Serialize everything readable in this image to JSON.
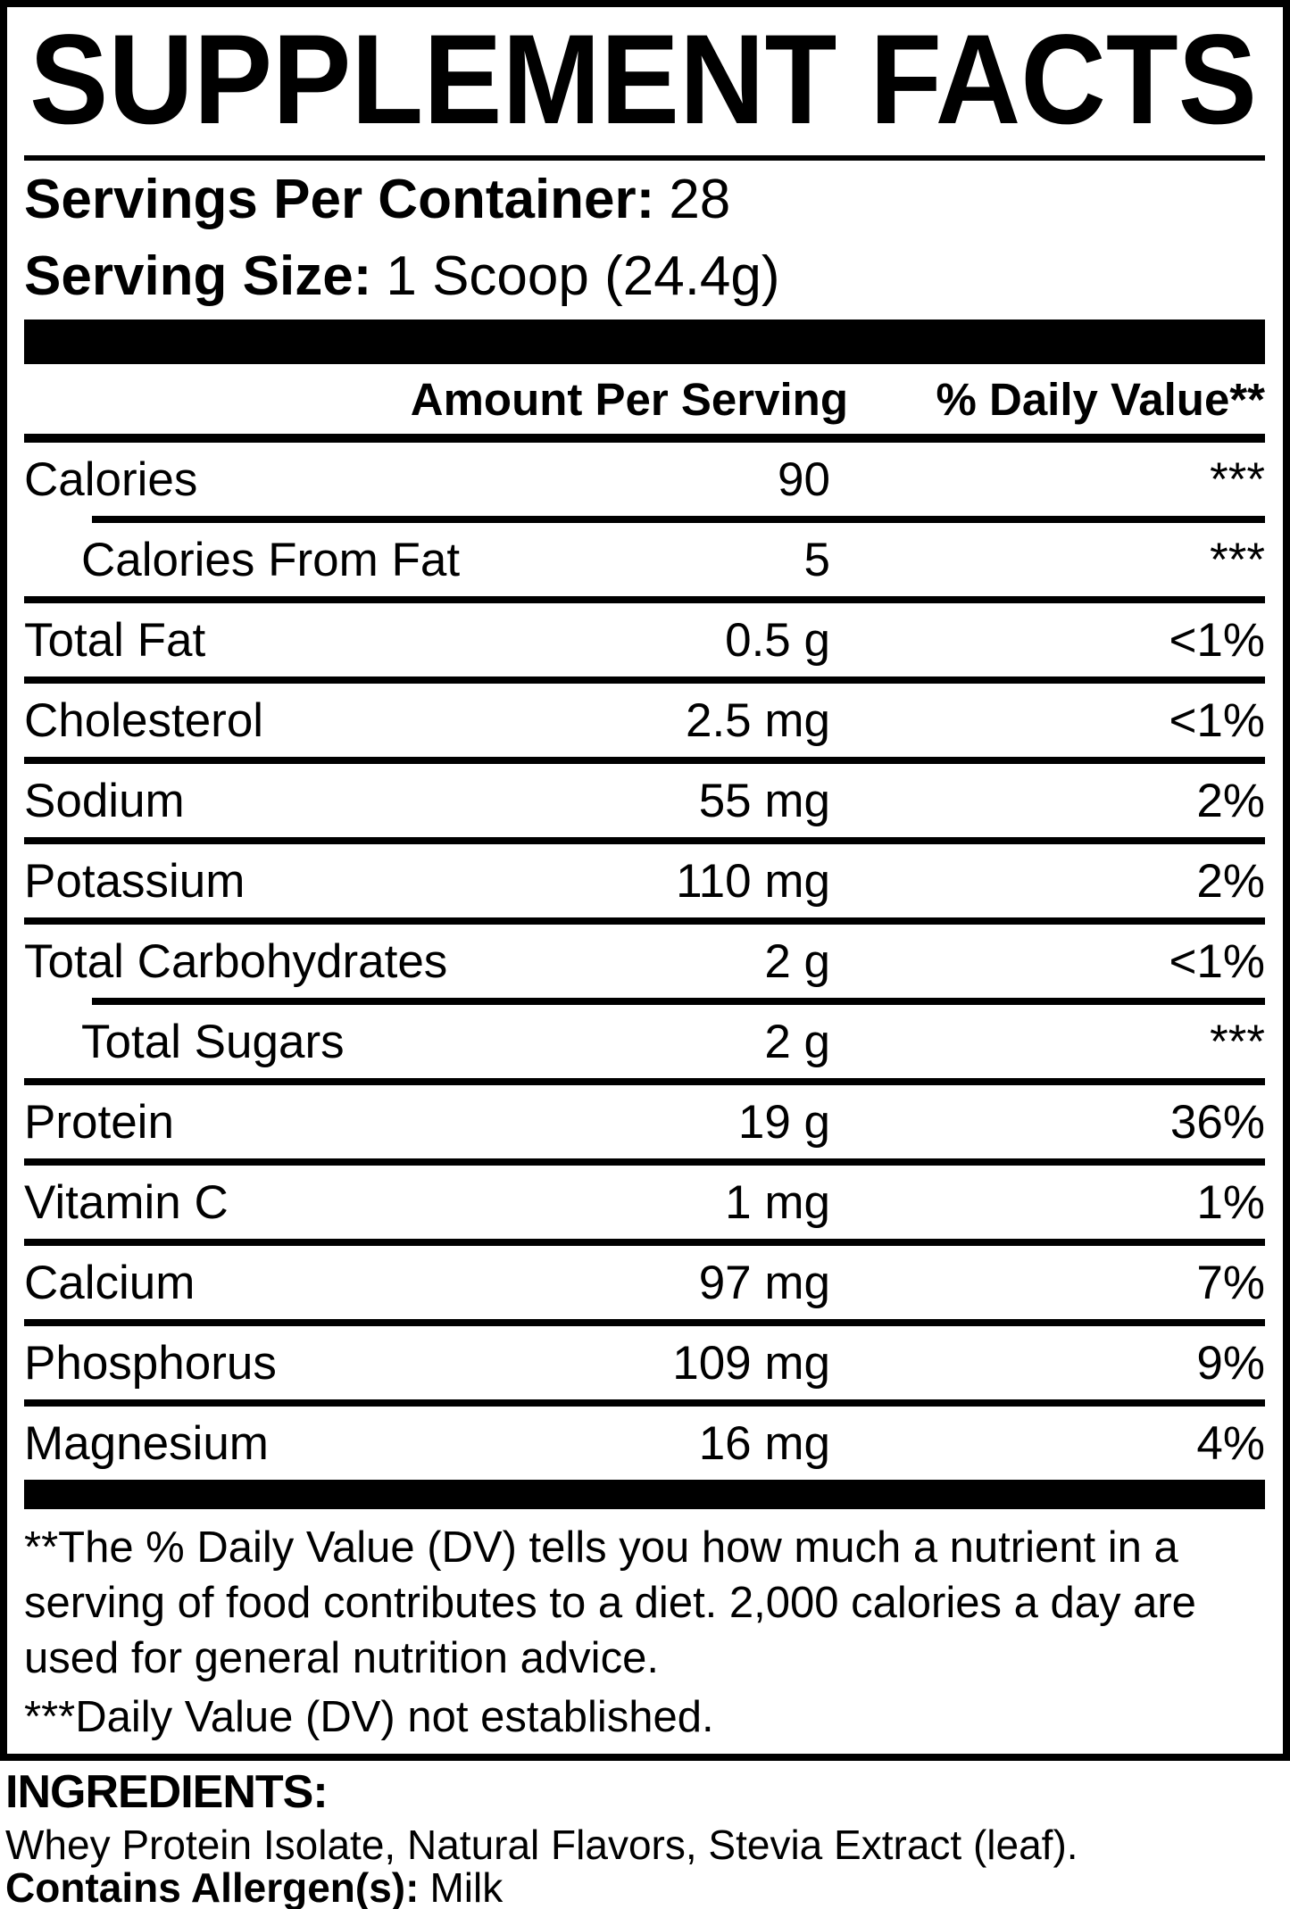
{
  "colors": {
    "ink": "#000000",
    "paper": "#ffffff"
  },
  "title": "SUPPLEMENT FACTS",
  "serving_info": {
    "servings_label": "Servings Per Container:",
    "servings_value": "28",
    "size_label": "Serving Size:",
    "size_value": "1 Scoop (24.4g)"
  },
  "table": {
    "amount_header": "Amount Per Serving",
    "dv_header": "% Daily Value**",
    "rows": [
      {
        "name": "Calories",
        "amount": "90",
        "dv": "***",
        "indent": false,
        "sep": "indent"
      },
      {
        "name": "Calories From Fat",
        "amount": "5",
        "dv": "***",
        "indent": true,
        "sep": "full"
      },
      {
        "name": "Total Fat",
        "amount": "0.5 g",
        "dv": "<1%",
        "indent": false,
        "sep": "full"
      },
      {
        "name": "Cholesterol",
        "amount": "2.5 mg",
        "dv": "<1%",
        "indent": false,
        "sep": "full"
      },
      {
        "name": "Sodium",
        "amount": "55 mg",
        "dv": "2%",
        "indent": false,
        "sep": "full"
      },
      {
        "name": "Potassium",
        "amount": "110 mg",
        "dv": "2%",
        "indent": false,
        "sep": "full"
      },
      {
        "name": "Total Carbohydrates",
        "amount": "2 g",
        "dv": "<1%",
        "indent": false,
        "sep": "indent"
      },
      {
        "name": "Total Sugars",
        "amount": "2 g",
        "dv": "***",
        "indent": true,
        "sep": "full"
      },
      {
        "name": "Protein",
        "amount": "19 g",
        "dv": "36%",
        "indent": false,
        "sep": "full"
      },
      {
        "name": "Vitamin C",
        "amount": "1 mg",
        "dv": "1%",
        "indent": false,
        "sep": "full"
      },
      {
        "name": "Calcium",
        "amount": "97 mg",
        "dv": "7%",
        "indent": false,
        "sep": "full"
      },
      {
        "name": "Phosphorus",
        "amount": "109 mg",
        "dv": "9%",
        "indent": false,
        "sep": "full"
      },
      {
        "name": "Magnesium",
        "amount": "16 mg",
        "dv": "4%",
        "indent": false,
        "sep": "none"
      }
    ]
  },
  "footnotes": {
    "daily_value_note": "**The % Daily Value (DV) tells you how much a nutrient in a serving of food contributes to a diet. 2,000 calories a day are used for general nutrition advice.",
    "not_established_note": "***Daily Value (DV) not established."
  },
  "ingredients": {
    "heading": "INGREDIENTS:",
    "list": "Whey Protein Isolate, Natural Flavors, Stevia Extract (leaf).",
    "allergen_label": "Contains Allergen(s):",
    "allergen_value": "Milk"
  }
}
